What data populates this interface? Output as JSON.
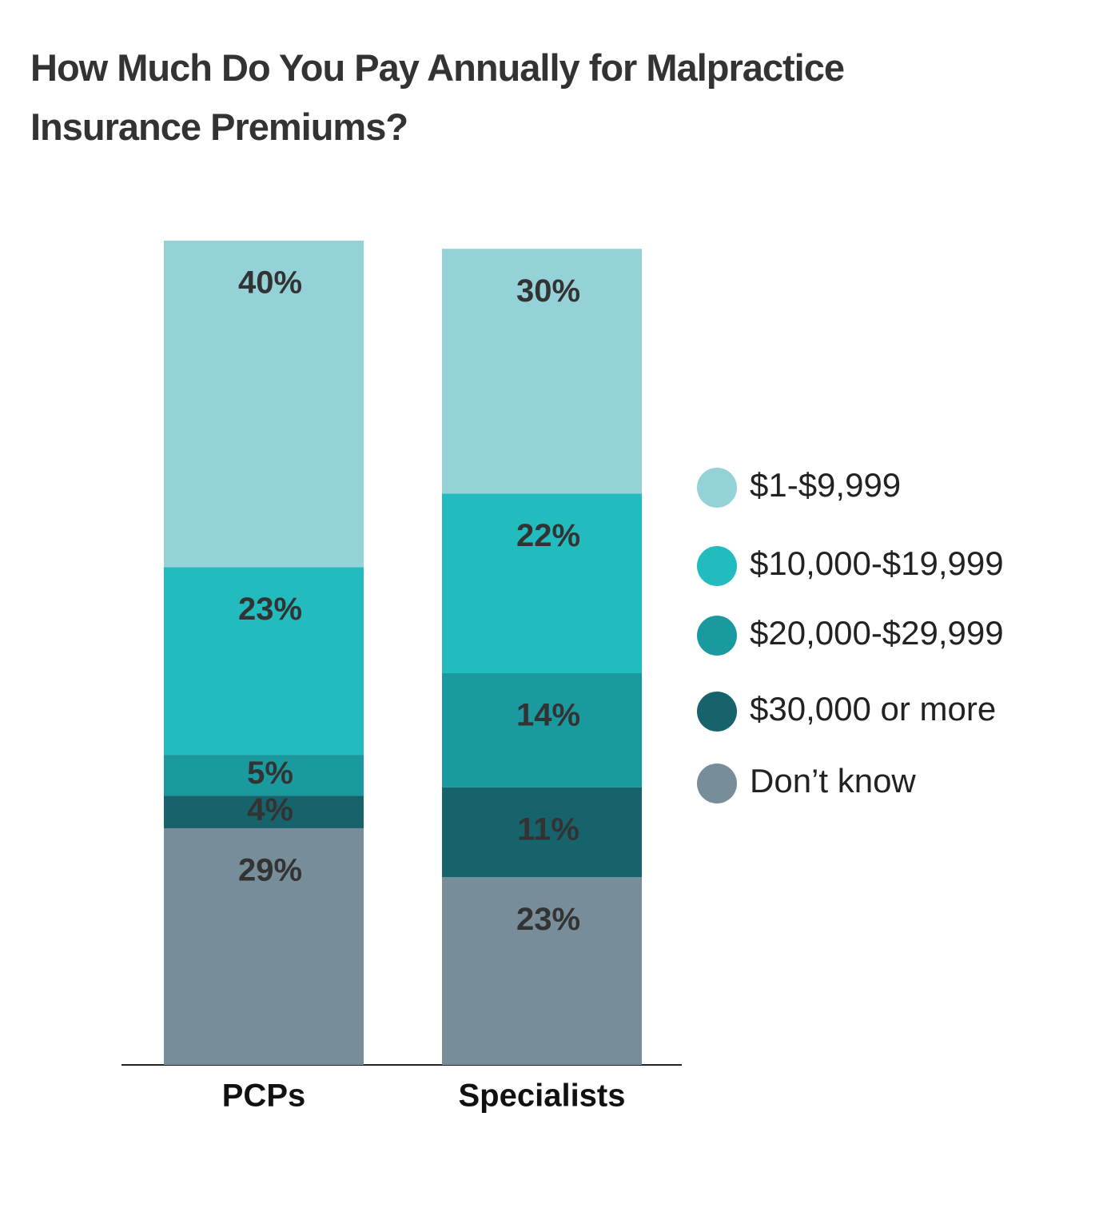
{
  "chart_data": {
    "type": "stacked_bar",
    "title": "How Much Do You Pay Annually for Malpractice Insurance Premiums?",
    "categories": [
      "PCPs",
      "Specialists"
    ],
    "series": [
      {
        "name": "$1-$9,999",
        "color": "#94d2d7",
        "values": [
          40,
          30
        ],
        "value_labels": [
          "40%",
          "30%"
        ]
      },
      {
        "name": "$10,000-$19,999",
        "color": "#22bbbe",
        "values": [
          23,
          22
        ],
        "value_labels": [
          "23%",
          "22%"
        ]
      },
      {
        "name": "$20,000-$29,999",
        "color": "#1a999e",
        "values": [
          5,
          14
        ],
        "value_labels": [
          "5%",
          "14%"
        ]
      },
      {
        "name": "$30,000 or more",
        "color": "#16636c",
        "values": [
          4,
          11
        ],
        "value_labels": [
          "4%",
          "11%"
        ]
      },
      {
        "name": "Don’t know",
        "color": "#778d99",
        "values": [
          29,
          23
        ],
        "value_labels": [
          "29%",
          "23%"
        ]
      }
    ],
    "ylim": [
      0,
      101
    ],
    "legend": "right"
  }
}
